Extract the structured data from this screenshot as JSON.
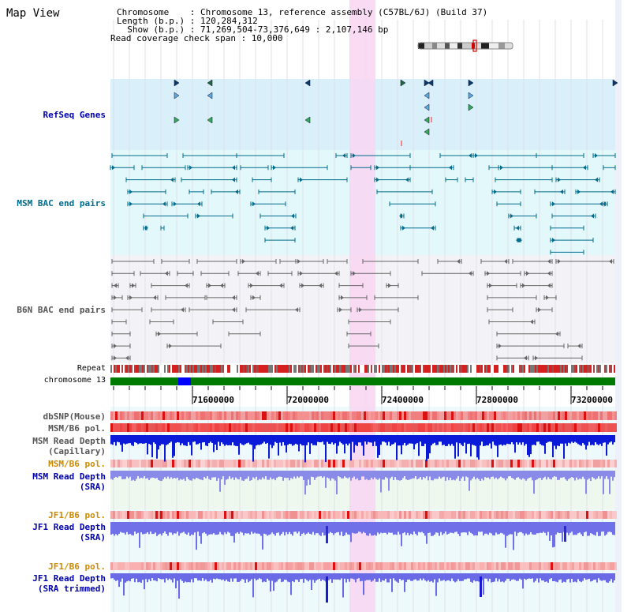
{
  "view_title": "Map View",
  "info_lines": [
    "Chromosome    : Chromosome 13, reference assembly (C57BL/6J) (Build 37)",
    "Length (b.p.) : 120,284,312",
    "  Show (b.p.) : 71,269,504-73,376,649 : 2,107,146 bp",
    "Read coverage check span : 10,000"
  ],
  "colors": {
    "refseq_bg": "#d9f0fa",
    "msm_bg": "#e3f8fa",
    "b6n_bg": "#f3f3f7",
    "highlight": "#f8d6f2",
    "chrom_green": "#007a00",
    "refseq_label": "#0000aa",
    "msm_label": "#006b8c",
    "b6n_label": "#555555",
    "pol_orange": "#cc8a00",
    "depth_blue": "#0000aa"
  },
  "tracks": {
    "refseq": "RefSeq Genes",
    "msm_bac": "MSM BAC end pairs",
    "b6n_bac": "B6N BAC end pairs",
    "repeat": "Repeat",
    "chromosome": "chromosome 13"
  },
  "axis_ticks": [
    "71600000",
    "72000000",
    "72400000",
    "72800000",
    "73200000"
  ],
  "data_tracks": [
    {
      "line1": "dbSNP(Mouse)",
      "line2": ""
    },
    {
      "line1": "MSM/B6 pol.",
      "line2": ""
    },
    {
      "line1": "MSM Read Depth",
      "line2": "(Capillary)"
    },
    {
      "line1": "MSM/B6 pol.",
      "line2": ""
    },
    {
      "line1": "MSM Read Depth",
      "line2": "(SRA)"
    },
    {
      "line1": "JF1/B6 pol.",
      "line2": ""
    },
    {
      "line1": "JF1 Read Depth",
      "line2": "(SRA)"
    },
    {
      "line1": "JF1/B6 pol.",
      "line2": ""
    },
    {
      "line1": "JF1 Read Depth",
      "line2": "(SRA trimmed)"
    }
  ]
}
